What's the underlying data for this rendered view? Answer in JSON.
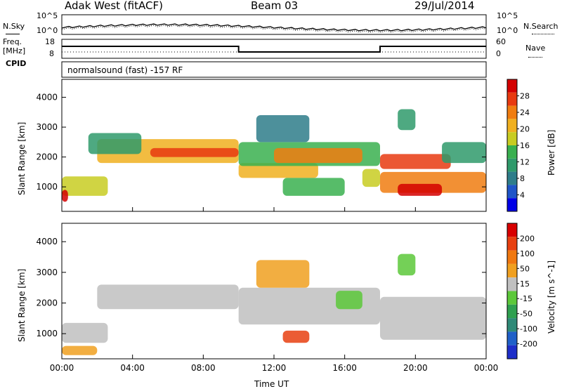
{
  "header": {
    "station": "Adak West (fitACF)",
    "beam": "Beam 03",
    "date": "29/Jul/2014"
  },
  "strip_labels": {
    "nsky": "N.Sky",
    "nsearch": "N.Search",
    "freq_line1": "Freq.",
    "freq_line2": "[MHz]",
    "nave": "Nave",
    "cpid": "CPID",
    "cpid_value": "normalsound (fast) -157 RF",
    "noise_tick_top": "10^5",
    "noise_tick_bottom": "10^0",
    "freq_tick_top": "18",
    "freq_tick_bottom": "8",
    "nave_tick_top": "60",
    "nave_tick_bottom": "0"
  },
  "chart_data": [
    {
      "type": "heatmap",
      "name": "power",
      "ylabel": "Slant Range [km]",
      "xlabel": "",
      "x_range_hours": [
        0,
        24
      ],
      "ylim": [
        180,
        4600
      ],
      "y_ticks": [
        "1000",
        "2000",
        "3000",
        "4000"
      ],
      "colorbar_label": "Power [dB]",
      "colorbar_ticks": [
        "4",
        "8",
        "12",
        "16",
        "20",
        "24",
        "28"
      ],
      "colors": [
        "#0000e6",
        "#1f55c8",
        "#2e7d8a",
        "#2f9a6b",
        "#39b04f",
        "#c8cc22",
        "#f0b020",
        "#f07d10",
        "#e83a10",
        "#d40000"
      ],
      "bands": [
        {
          "t0": 0.0,
          "t1": 2.6,
          "r0": 700,
          "r1": 1350,
          "level": 5
        },
        {
          "t0": 0.0,
          "t1": 0.35,
          "r0": 500,
          "r1": 900,
          "level": 9
        },
        {
          "t0": 2.0,
          "t1": 10.0,
          "r0": 1800,
          "r1": 2600,
          "level": 6
        },
        {
          "t0": 5.0,
          "t1": 10.0,
          "r0": 2000,
          "r1": 2300,
          "level": 8
        },
        {
          "t0": 1.5,
          "t1": 4.5,
          "r0": 2100,
          "r1": 2800,
          "level": 3
        },
        {
          "t0": 10.0,
          "t1": 14.5,
          "r0": 1300,
          "r1": 1800,
          "level": 6
        },
        {
          "t0": 10.0,
          "t1": 18.0,
          "r0": 1700,
          "r1": 2500,
          "level": 4
        },
        {
          "t0": 12.0,
          "t1": 17.0,
          "r0": 1800,
          "r1": 2300,
          "level": 7
        },
        {
          "t0": 11.0,
          "t1": 14.0,
          "r0": 2500,
          "r1": 3400,
          "level": 2
        },
        {
          "t0": 12.5,
          "t1": 16.0,
          "r0": 700,
          "r1": 1300,
          "level": 4
        },
        {
          "t0": 17.0,
          "t1": 18.0,
          "r0": 1000,
          "r1": 1600,
          "level": 5
        },
        {
          "t0": 18.0,
          "t1": 24.0,
          "r0": 800,
          "r1": 1500,
          "level": 7
        },
        {
          "t0": 19.0,
          "t1": 21.5,
          "r0": 700,
          "r1": 1100,
          "level": 9
        },
        {
          "t0": 18.0,
          "t1": 22.0,
          "r0": 1600,
          "r1": 2100,
          "level": 8
        },
        {
          "t0": 21.5,
          "t1": 24.0,
          "r0": 1800,
          "r1": 2500,
          "level": 3
        },
        {
          "t0": 19.0,
          "t1": 20.0,
          "r0": 2900,
          "r1": 3600,
          "level": 3
        }
      ]
    },
    {
      "type": "heatmap",
      "name": "velocity",
      "ylabel": "Slant Range [km]",
      "xlabel": "Time UT",
      "x_range_hours": [
        0,
        24
      ],
      "x_ticks": [
        "00:00",
        "04:00",
        "08:00",
        "12:00",
        "16:00",
        "20:00",
        "00:00"
      ],
      "ylim": [
        180,
        4600
      ],
      "y_ticks": [
        "1000",
        "2000",
        "3000",
        "4000"
      ],
      "colorbar_label": "Velocity [m s^-1]",
      "colorbar_ticks": [
        "200",
        "100",
        "50",
        "15",
        "-15",
        "-50",
        "-100",
        "-200"
      ],
      "colors": [
        "#1e2ec8",
        "#2060c8",
        "#2f8a78",
        "#2fa050",
        "#5cc83a",
        "#c0c0c0",
        "#f0a020",
        "#f07810",
        "#e84010",
        "#d80000"
      ],
      "bands": [
        {
          "t0": 0.0,
          "t1": 2.6,
          "r0": 700,
          "r1": 1350,
          "level": 5
        },
        {
          "t0": 2.0,
          "t1": 10.0,
          "r0": 1800,
          "r1": 2600,
          "level": 5
        },
        {
          "t0": 10.0,
          "t1": 18.0,
          "r0": 1300,
          "r1": 2500,
          "level": 5
        },
        {
          "t0": 18.0,
          "t1": 24.0,
          "r0": 800,
          "r1": 2200,
          "level": 5
        },
        {
          "t0": 11.0,
          "t1": 14.0,
          "r0": 2500,
          "r1": 3400,
          "level": 6
        },
        {
          "t0": 12.5,
          "t1": 14.0,
          "r0": 700,
          "r1": 1100,
          "level": 8
        },
        {
          "t0": 15.5,
          "t1": 17.0,
          "r0": 1800,
          "r1": 2400,
          "level": 4
        },
        {
          "t0": 19.0,
          "t1": 20.0,
          "r0": 2900,
          "r1": 3600,
          "level": 4
        },
        {
          "t0": 0.0,
          "t1": 2.0,
          "r0": 300,
          "r1": 600,
          "level": 6
        }
      ]
    }
  ]
}
